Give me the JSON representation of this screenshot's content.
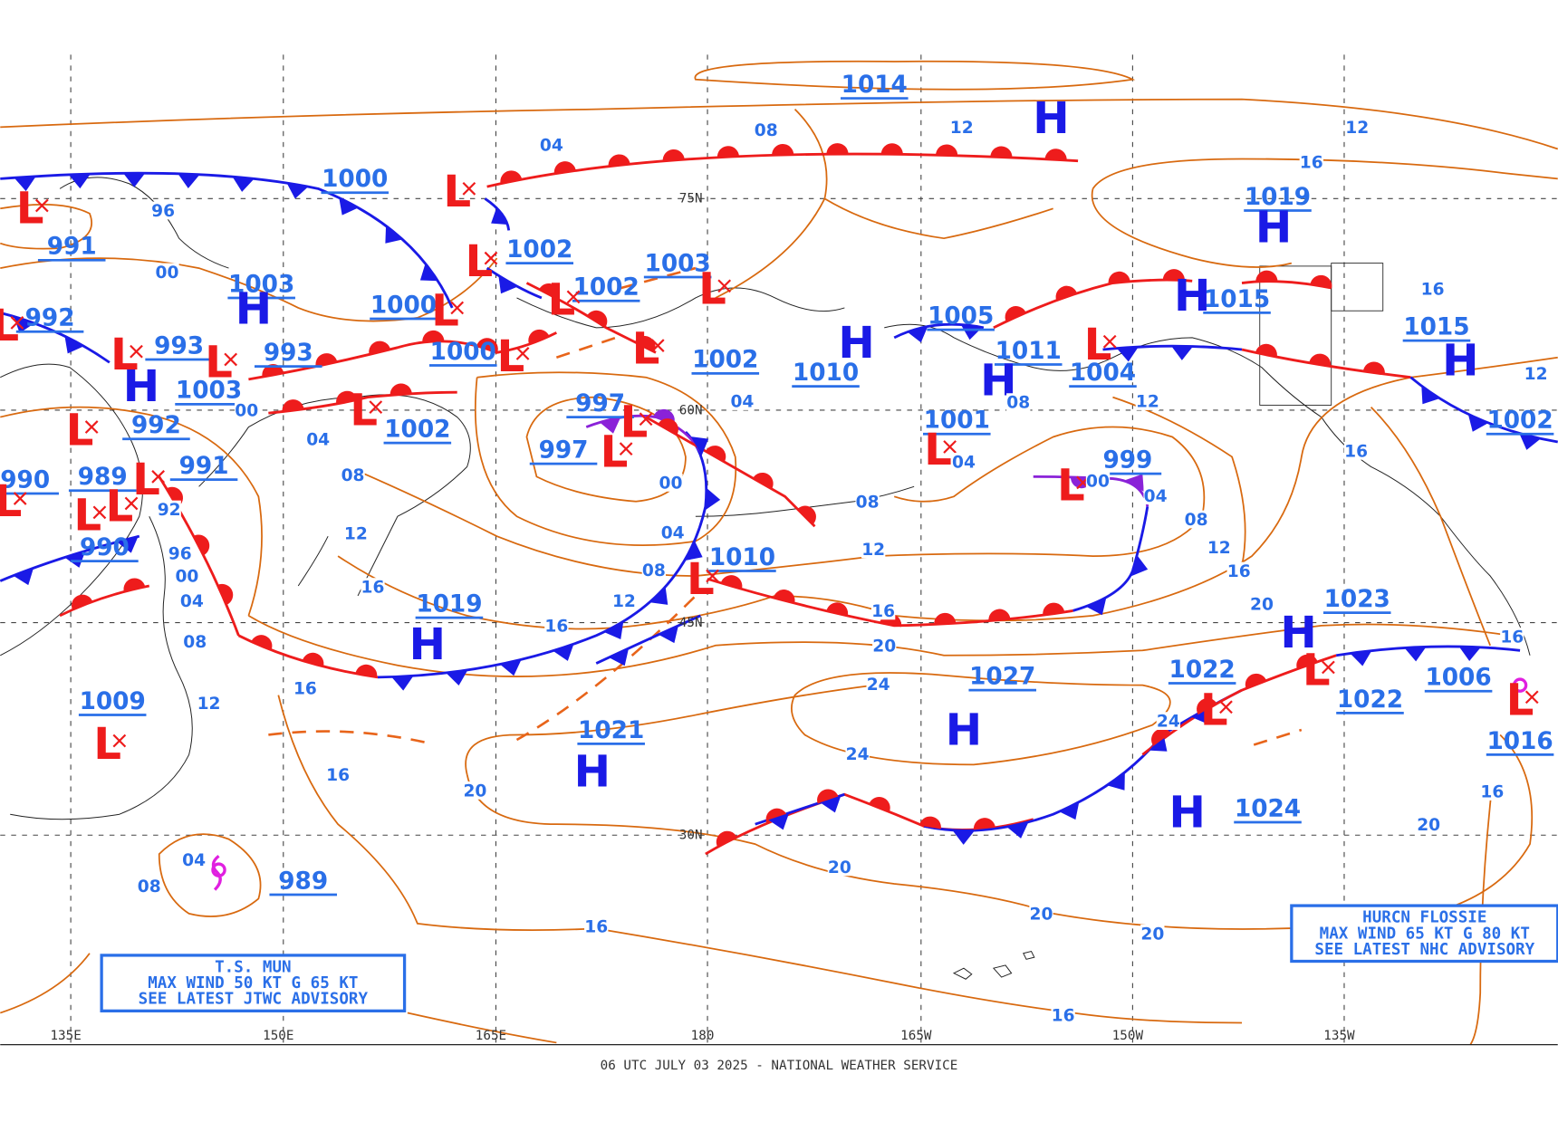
{
  "footer": "06 UTC JULY 03 2025 - NATIONAL WEATHER SERVICE",
  "longitude_labels": [
    "135E",
    "150E",
    "165E",
    "180",
    "165W",
    "150W",
    "135W"
  ],
  "latitude_labels": [
    "75N",
    "60N",
    "45N",
    "30N"
  ],
  "pressure_labels": [
    1014,
    1000,
    991,
    1003,
    1000,
    992,
    993,
    993,
    1003,
    992,
    991,
    990,
    989,
    990,
    1002,
    1003,
    1002,
    1000,
    1002,
    1010,
    1005,
    1011,
    1004,
    1002,
    997,
    997,
    1001,
    999,
    1019,
    1015,
    1015,
    1002,
    1010,
    1019,
    1021,
    1027,
    1022,
    1023,
    1022,
    1006,
    1016,
    1024,
    1009,
    989
  ],
  "centers": [
    "H",
    "H",
    "H",
    "H",
    "H",
    "H",
    "H",
    "H",
    "H",
    "H",
    "H",
    "H",
    "H",
    "L",
    "L",
    "L",
    "L",
    "L",
    "L",
    "L",
    "L",
    "L",
    "L",
    "L",
    "L",
    "L",
    "L",
    "L",
    "L",
    "L",
    "L",
    "L",
    "L",
    "L",
    "L",
    "L",
    "L",
    "L",
    "L",
    "L"
  ],
  "isobar_labels": [
    "04",
    "08",
    "12",
    "12",
    "16",
    "96",
    "00",
    "16",
    "00",
    "04",
    "04",
    "08",
    "00",
    "04",
    "08",
    "12",
    "16",
    "12",
    "16",
    "08",
    "12",
    "16",
    "20",
    "24",
    "24",
    "20",
    "20",
    "16",
    "16",
    "20",
    "20",
    "16",
    "16",
    "20",
    "16",
    "16",
    "12",
    "08",
    "04",
    "00",
    "04",
    "08",
    "12",
    "16",
    "20",
    "24",
    "92",
    "96",
    "00",
    "04",
    "08",
    "12",
    "16",
    "08",
    "04",
    "12"
  ],
  "advisories": [
    {
      "lines": [
        "T.S. MUN",
        "MAX WIND 50 KT G 65 KT",
        "SEE LATEST JTWC ADVISORY"
      ]
    },
    {
      "lines": [
        "HURCN FLOSSIE",
        "MAX WIND 65 KT G 80 KT",
        "SEE LATEST NHC ADVISORY"
      ]
    }
  ]
}
